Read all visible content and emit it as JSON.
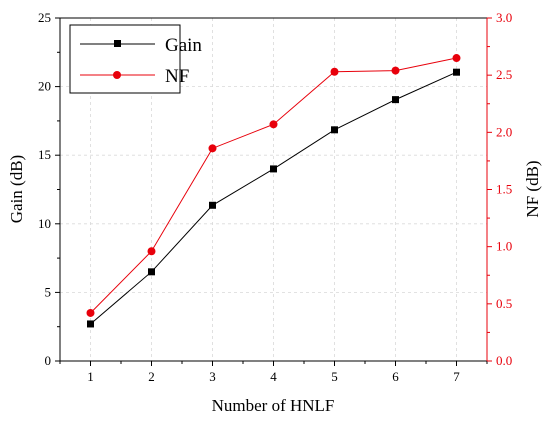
{
  "chart_data": {
    "type": "line",
    "title": "",
    "xlabel": "Number of HNLF",
    "x": [
      1,
      2,
      3,
      4,
      5,
      6,
      7
    ],
    "xlim": [
      0.5,
      7.5
    ],
    "x_ticks": [
      "1",
      "2",
      "3",
      "4",
      "5",
      "6",
      "7"
    ],
    "y_left": {
      "label": "Gain (dB)",
      "lim": [
        0,
        25
      ],
      "ticks": [
        "0",
        "5",
        "10",
        "15",
        "20",
        "25"
      ]
    },
    "y_right": {
      "label": "NF (dB)",
      "lim": [
        0,
        3.0
      ],
      "ticks": [
        "0.0",
        "0.5",
        "1.0",
        "1.5",
        "2.0",
        "2.5",
        "3.0"
      ],
      "color": "#e8000b"
    },
    "grid": true,
    "legend_position": "top-left",
    "series": [
      {
        "name": "Gain",
        "axis": "left",
        "color": "#000000",
        "marker": "square",
        "values": [
          2.7,
          6.5,
          11.35,
          14.0,
          16.85,
          19.05,
          21.05
        ]
      },
      {
        "name": "NF",
        "axis": "right",
        "color": "#e8000b",
        "marker": "circle",
        "values": [
          0.42,
          0.96,
          1.86,
          2.07,
          2.53,
          2.54,
          2.65
        ]
      }
    ]
  }
}
